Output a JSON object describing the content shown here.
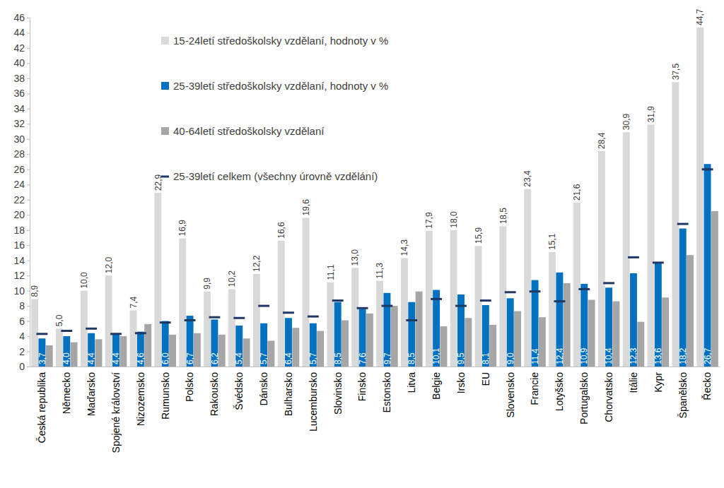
{
  "chart_data": {
    "type": "bar",
    "categories": [
      "Česká republika",
      "Německo",
      "Maďarsko",
      "Spojené království",
      "Nizozemsko",
      "Rumunsko",
      "Polsko",
      "Rakousko",
      "Švédsko",
      "Dánsko",
      "Bulharsko",
      "Lucembursko",
      "Slovinsko",
      "Finsko",
      "Estonsko",
      "Litva",
      "Belgie",
      "Irsko",
      "EU",
      "Slovensko",
      "Francie",
      "Lotyšsko",
      "Portugalsko",
      "Chorvatsko",
      "Itálie",
      "Kypr",
      "Španělsko",
      "Řecko"
    ],
    "series": [
      {
        "name": "15-24letí středoškolsky vzdělaní, hodnoty v %",
        "type": "bar",
        "color": "#d9d9d9",
        "data_labels": true,
        "values": [
          8.9,
          5.0,
          10.0,
          12.0,
          7.4,
          22.9,
          16.9,
          9.9,
          10.2,
          12.2,
          16.6,
          19.6,
          11.1,
          13.0,
          11.3,
          14.3,
          17.9,
          18.0,
          15.9,
          18.5,
          23.4,
          15.1,
          21.6,
          28.4,
          30.9,
          31.9,
          37.5,
          44.7
        ],
        "value_labels": [
          "8,9",
          "5,0",
          "10,0",
          "12,0",
          "7,4",
          "22,9",
          "16,9",
          "9,9",
          "10,2",
          "12,2",
          "16,6",
          "19,6",
          "11,1",
          "13,0",
          "11,3",
          "14,3",
          "17,9",
          "18,0",
          "15,9",
          "18,5",
          "23,4",
          "15,1",
          "21,6",
          "28,4",
          "30,9",
          "31,9",
          "37,5",
          "44,7"
        ]
      },
      {
        "name": "25-39letí středoškolsky vzdělaní, hodnoty v %",
        "type": "bar",
        "color": "#0070c0",
        "data_labels": true,
        "values": [
          3.7,
          4.0,
          4.4,
          4.4,
          4.6,
          6.0,
          6.7,
          6.2,
          5.4,
          5.7,
          6.4,
          5.7,
          8.5,
          7.6,
          9.7,
          8.5,
          10.1,
          9.5,
          8.1,
          9.0,
          11.4,
          12.4,
          10.9,
          10.4,
          12.3,
          13.6,
          18.2,
          26.7
        ],
        "value_labels": [
          "3,7",
          "4,0",
          "4,4",
          "4,4",
          "4,6",
          "6,0",
          "6,7",
          "6,2",
          "5,4",
          "5,7",
          "6,4",
          "5,7",
          "8,5",
          "7,6",
          "9,7",
          "8,5",
          "10,1",
          "9,5",
          "8,1",
          "9,0",
          "11,4",
          "12,4",
          "10,9",
          "10,4",
          "12,3",
          "13,6",
          "18,2",
          "26,7"
        ]
      },
      {
        "name": "40-64letí středoškolsky vzdělaní",
        "type": "bar",
        "color": "#a6a6a6",
        "data_labels": false,
        "values": [
          2.8,
          3.2,
          3.6,
          4.0,
          5.6,
          4.2,
          4.4,
          4.2,
          3.7,
          3.4,
          5.1,
          4.7,
          6.1,
          7.0,
          8.0,
          9.9,
          5.3,
          6.4,
          5.5,
          7.3,
          6.5,
          11.0,
          8.8,
          8.6,
          5.9,
          9.1,
          14.7,
          20.5
        ]
      },
      {
        "name": "25-39letí celkem (všechny úrovně vzdělání)",
        "type": "line",
        "color": "#1f3864",
        "marker": "dash",
        "line_style": "none",
        "data_labels": false,
        "values": [
          4.3,
          4.7,
          5.0,
          4.3,
          4.4,
          5.8,
          6.1,
          6.5,
          6.4,
          8.0,
          7.1,
          6.6,
          8.7,
          7.7,
          8.0,
          6.1,
          8.9,
          8.0,
          8.7,
          9.8,
          9.9,
          8.6,
          10.2,
          11.0,
          14.4,
          13.7,
          18.8,
          26.0
        ]
      }
    ],
    "ylim": [
      0,
      46
    ],
    "yticks": [
      0,
      2,
      4,
      6,
      8,
      10,
      12,
      14,
      16,
      18,
      20,
      22,
      24,
      26,
      28,
      30,
      32,
      34,
      36,
      38,
      40,
      42,
      44,
      46
    ],
    "grid": false,
    "legend": "upper left"
  }
}
